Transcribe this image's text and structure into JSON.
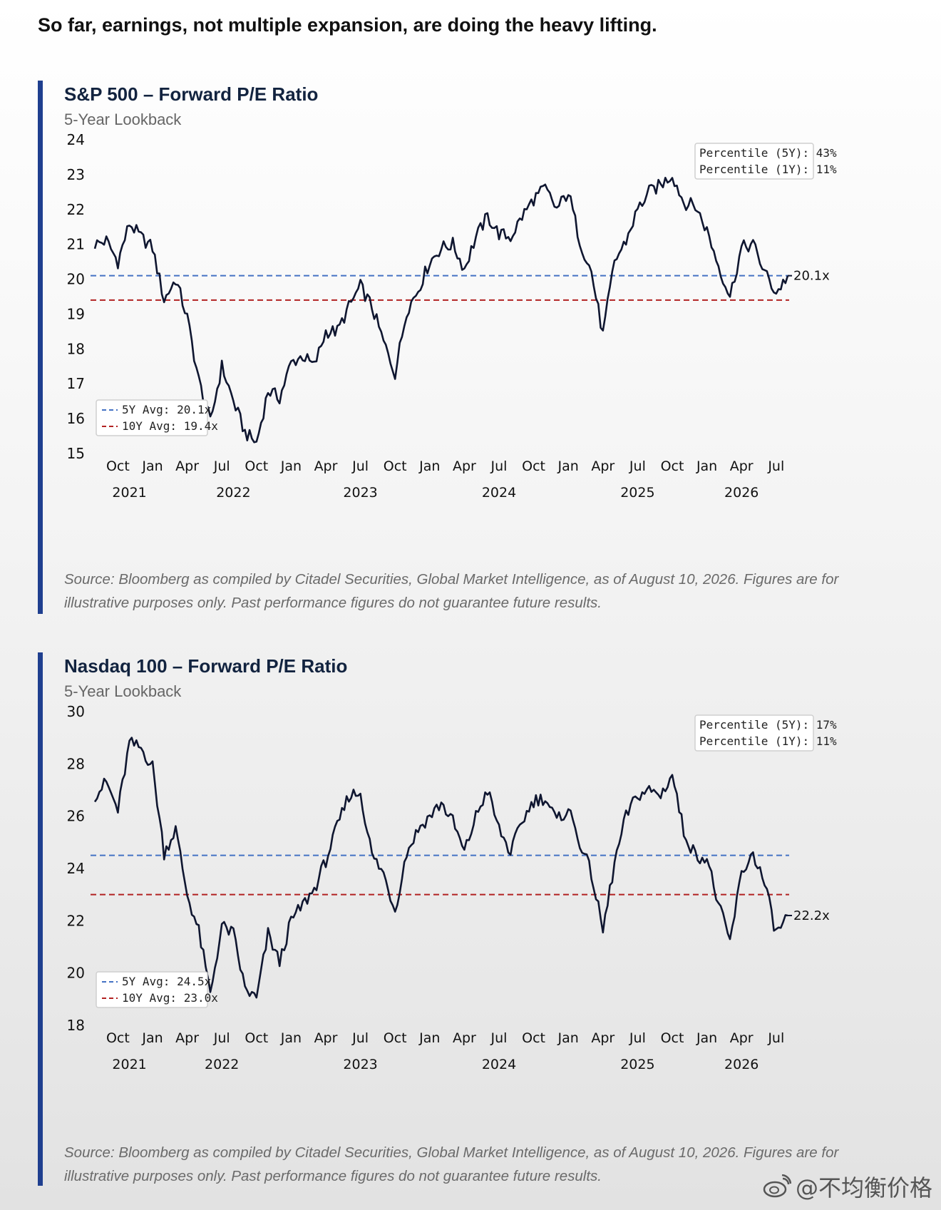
{
  "headline": "So far, earnings, not multiple expansion, are doing the heavy lifting.",
  "watermark": "@不均衡价格",
  "colors": {
    "accent_bar": "#1f3f8f",
    "series": "#0f1630",
    "avg5": "#4472c4",
    "avg10": "#b22222"
  },
  "panels": [
    {
      "title": "S&P 500 – Forward P/E Ratio",
      "subtitle": "5-Year Lookback",
      "source": "Source: Bloomberg as compiled by Citadel Securities, Global Market Intelligence, as of August 10, 2026. Figures are for illustrative purposes only. Past performance figures do not guarantee future results.",
      "percentile_5y": "Percentile (5Y): 43%",
      "percentile_1y": "Percentile (1Y): 11%",
      "legend_5y": "5Y Avg: 20.1x",
      "legend_10y": "10Y Avg: 19.4x",
      "end_label": "20.1x"
    },
    {
      "title": "Nasdaq 100 – Forward P/E Ratio",
      "subtitle": "5-Year Lookback",
      "source": "Source: Bloomberg as compiled by Citadel Securities, Global Market Intelligence, as of August 10, 2026. Figures are for illustrative purposes only. Past performance figures do not guarantee future results.",
      "percentile_5y": "Percentile (5Y): 17%",
      "percentile_1y": "Percentile (1Y): 11%",
      "legend_5y": "5Y Avg: 24.5x",
      "legend_10y": "10Y Avg: 23.0x",
      "end_label": "22.2x"
    }
  ],
  "chart_data": [
    {
      "type": "line",
      "title": "S&P 500 – Forward P/E Ratio",
      "subtitle": "5-Year Lookback",
      "ylim": [
        15,
        24
      ],
      "yticks": [
        15,
        16,
        17,
        18,
        19,
        20,
        21,
        22,
        23,
        24
      ],
      "xticks": [
        "Oct",
        "Jan",
        "Apr",
        "Jul",
        "Oct",
        "Jan",
        "Apr",
        "Jul",
        "Oct",
        "Jan",
        "Apr",
        "Jul",
        "Oct",
        "Jan",
        "Apr",
        "Jul",
        "Oct",
        "Jan",
        "Apr",
        "Jul"
      ],
      "xyears": [
        "2021",
        "2022",
        "2023",
        "2024",
        "2025",
        "2026"
      ],
      "xlim": [
        "2021-08",
        "2026-08"
      ],
      "hlines": [
        {
          "name": "5Y Avg: 20.1x",
          "value": 20.1,
          "style": "dashed",
          "color": "#4472c4"
        },
        {
          "name": "10Y Avg: 19.4x",
          "value": 19.4,
          "style": "dashed",
          "color": "#b22222"
        }
      ],
      "series": [
        {
          "x": [
            "2021-08",
            "2021-09",
            "2021-10",
            "2021-11",
            "2021-12",
            "2022-01",
            "2022-02",
            "2022-03",
            "2022-04",
            "2022-05",
            "2022-06",
            "2022-07",
            "2022-08",
            "2022-09",
            "2022-10",
            "2022-11",
            "2022-12",
            "2023-01",
            "2023-02",
            "2023-03",
            "2023-04",
            "2023-05",
            "2023-06",
            "2023-07",
            "2023-08",
            "2023-09",
            "2023-10",
            "2023-11",
            "2023-12",
            "2024-01",
            "2024-02",
            "2024-03",
            "2024-04",
            "2024-05",
            "2024-06",
            "2024-07",
            "2024-08",
            "2024-09",
            "2024-10",
            "2024-11",
            "2024-12",
            "2025-01",
            "2025-02",
            "2025-03",
            "2025-04",
            "2025-05",
            "2025-06",
            "2025-07",
            "2025-08",
            "2025-09",
            "2025-10",
            "2025-11",
            "2025-12",
            "2026-01",
            "2026-02",
            "2026-03",
            "2026-04",
            "2026-05",
            "2026-06",
            "2026-07",
            "2026-08"
          ],
          "values": [
            21.0,
            21.1,
            20.5,
            21.6,
            21.2,
            20.9,
            19.4,
            20.0,
            18.9,
            17.1,
            15.9,
            17.5,
            16.5,
            15.6,
            15.3,
            16.8,
            16.6,
            17.6,
            17.8,
            17.5,
            18.5,
            18.5,
            19.2,
            19.8,
            19.2,
            18.2,
            17.3,
            19.1,
            19.7,
            20.5,
            20.9,
            21.0,
            20.3,
            21.2,
            21.8,
            21.3,
            21.2,
            21.8,
            22.3,
            22.6,
            22.0,
            22.5,
            21.1,
            20.2,
            18.4,
            20.5,
            21.1,
            22.0,
            22.5,
            22.7,
            23.0,
            22.2,
            22.1,
            21.4,
            20.4,
            19.5,
            20.9,
            21.0,
            20.2,
            19.6,
            20.1
          ],
          "end_value": 20.1
        }
      ],
      "percentile_5y": "43%",
      "percentile_1y": "11%",
      "legend": "bottom-left",
      "percentile_box": "top-right"
    },
    {
      "type": "line",
      "title": "Nasdaq 100 – Forward P/E Ratio",
      "subtitle": "5-Year Lookback",
      "ylim": [
        18,
        30
      ],
      "yticks": [
        18,
        20,
        22,
        24,
        26,
        28,
        30
      ],
      "xticks": [
        "Oct",
        "Jan",
        "Apr",
        "Jul",
        "Oct",
        "Jan",
        "Apr",
        "Jul",
        "Oct",
        "Jan",
        "Apr",
        "Jul",
        "Oct",
        "Jan",
        "Apr",
        "Jul",
        "Oct",
        "Jan",
        "Apr",
        "Jul"
      ],
      "xyears": [
        "2021",
        "2022",
        "2023",
        "2024",
        "2025",
        "2026"
      ],
      "xlim": [
        "2021-08",
        "2026-08"
      ],
      "hlines": [
        {
          "name": "5Y Avg: 24.5x",
          "value": 24.5,
          "style": "dashed",
          "color": "#4472c4"
        },
        {
          "name": "10Y Avg: 23.0x",
          "value": 23.0,
          "style": "dashed",
          "color": "#b22222"
        }
      ],
      "series": [
        {
          "x": [
            "2021-08",
            "2021-09",
            "2021-10",
            "2021-11",
            "2021-12",
            "2022-01",
            "2022-02",
            "2022-03",
            "2022-04",
            "2022-05",
            "2022-06",
            "2022-07",
            "2022-08",
            "2022-09",
            "2022-10",
            "2022-11",
            "2022-12",
            "2023-01",
            "2023-02",
            "2023-03",
            "2023-04",
            "2023-05",
            "2023-06",
            "2023-07",
            "2023-08",
            "2023-09",
            "2023-10",
            "2023-11",
            "2023-12",
            "2024-01",
            "2024-02",
            "2024-03",
            "2024-04",
            "2024-05",
            "2024-06",
            "2024-07",
            "2024-08",
            "2024-09",
            "2024-10",
            "2024-11",
            "2024-12",
            "2025-01",
            "2025-02",
            "2025-03",
            "2025-04",
            "2025-05",
            "2025-06",
            "2025-07",
            "2025-08",
            "2025-09",
            "2025-10",
            "2025-11",
            "2025-12",
            "2026-01",
            "2026-02",
            "2026-03",
            "2026-04",
            "2026-05",
            "2026-06",
            "2026-07",
            "2026-08"
          ],
          "values": [
            26.8,
            27.3,
            26.2,
            28.8,
            28.6,
            27.9,
            24.6,
            25.5,
            23.0,
            21.6,
            19.2,
            21.8,
            21.5,
            19.4,
            19.0,
            21.5,
            20.4,
            22.0,
            22.6,
            23.2,
            24.3,
            25.6,
            26.8,
            26.9,
            24.5,
            23.8,
            22.4,
            24.6,
            25.5,
            26.0,
            26.5,
            25.8,
            24.6,
            26.0,
            27.0,
            25.5,
            24.6,
            25.8,
            26.6,
            26.7,
            25.8,
            26.3,
            25.0,
            23.8,
            21.6,
            24.2,
            26.0,
            26.8,
            27.0,
            26.8,
            27.6,
            25.4,
            24.5,
            24.4,
            22.6,
            21.2,
            23.8,
            24.6,
            23.4,
            21.5,
            22.2
          ],
          "end_value": 22.2
        }
      ],
      "percentile_5y": "17%",
      "percentile_1y": "11%",
      "legend": "bottom-left",
      "percentile_box": "top-right"
    }
  ]
}
